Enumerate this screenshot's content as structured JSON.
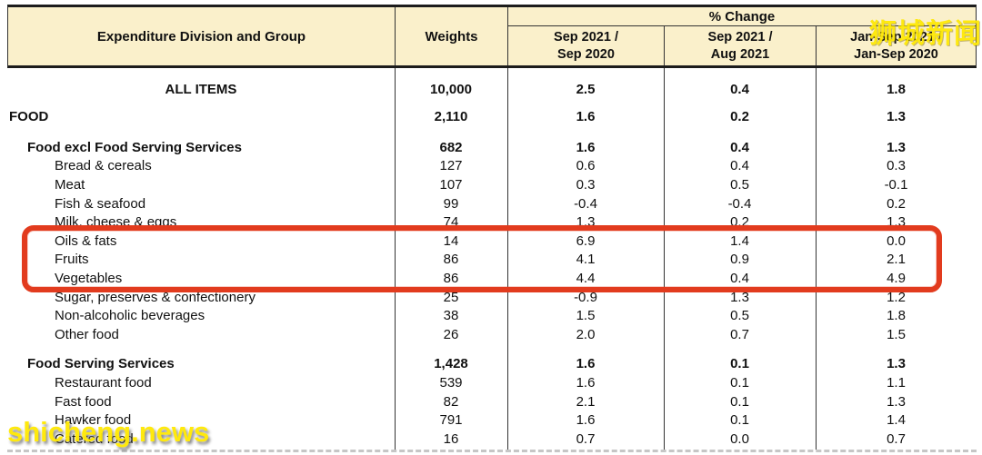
{
  "watermarks": {
    "top_right": "狮城新闻",
    "bottom_left": "shicheng.news"
  },
  "colors": {
    "header_bg": "#faf0cb",
    "table_line": "#333333",
    "highlight_red": "#e23b1e",
    "watermark_yellow": "#ffe906"
  },
  "table": {
    "header": {
      "col_division": "Expenditure Division and Group",
      "col_weights": "Weights",
      "pct_change": "% Change",
      "sub_columns": [
        "Sep 2021 /\nSep 2020",
        "Sep 2021 /\nAug 2021",
        "Jan-Sep 2021 /\nJan-Sep 2020"
      ]
    },
    "rows": [
      {
        "label": "ALL ITEMS",
        "style": "total",
        "weight": "10,000",
        "values": [
          "2.5",
          "0.4",
          "1.8"
        ]
      },
      {
        "label": "FOOD",
        "style": "division",
        "weight": "2,110",
        "values": [
          "1.6",
          "0.2",
          "1.3"
        ]
      },
      {
        "label": "Food excl Food Serving Services",
        "style": "group",
        "gap_before": 9,
        "weight": "682",
        "values": [
          "1.6",
          "0.4",
          "1.3"
        ]
      },
      {
        "label": "Bread & cereals",
        "style": "item",
        "weight": "127",
        "values": [
          "0.6",
          "0.4",
          "0.3"
        ]
      },
      {
        "label": "Meat",
        "style": "item",
        "weight": "107",
        "values": [
          "0.3",
          "0.5",
          "-0.1"
        ]
      },
      {
        "label": "Fish & seafood",
        "style": "item",
        "weight": "99",
        "values": [
          "-0.4",
          "-0.4",
          "0.2"
        ]
      },
      {
        "label": "Milk, cheese & eggs",
        "style": "item",
        "weight": "74",
        "values": [
          "1.3",
          "0.2",
          "1.3"
        ]
      },
      {
        "label": "Oils & fats",
        "style": "item",
        "highlighted": true,
        "weight": "14",
        "values": [
          "6.9",
          "1.4",
          "0.0"
        ]
      },
      {
        "label": "Fruits",
        "style": "item",
        "highlighted": true,
        "weight": "86",
        "values": [
          "4.1",
          "0.9",
          "2.1"
        ]
      },
      {
        "label": "Vegetables",
        "style": "item",
        "highlighted": true,
        "weight": "86",
        "values": [
          "4.4",
          "0.4",
          "4.9"
        ]
      },
      {
        "label": "Sugar, preserves & confectionery",
        "style": "item",
        "weight": "25",
        "values": [
          "-0.9",
          "1.3",
          "1.2"
        ]
      },
      {
        "label": "Non-alcoholic beverages",
        "style": "item",
        "weight": "38",
        "values": [
          "1.5",
          "0.5",
          "1.8"
        ]
      },
      {
        "label": "Other food",
        "style": "item",
        "weight": "26",
        "values": [
          "2.0",
          "0.7",
          "1.5"
        ]
      },
      {
        "label": "Food Serving Services",
        "style": "group",
        "gap_before": 12,
        "weight": "1,428",
        "values": [
          "1.6",
          "0.1",
          "1.3"
        ]
      },
      {
        "label": "Restaurant food",
        "style": "item",
        "weight": "539",
        "values": [
          "1.6",
          "0.1",
          "1.1"
        ]
      },
      {
        "label": "Fast food",
        "style": "item",
        "weight": "82",
        "values": [
          "2.1",
          "0.1",
          "1.3"
        ]
      },
      {
        "label": "Hawker food",
        "style": "item",
        "weight": "791",
        "values": [
          "1.6",
          "0.1",
          "1.4"
        ]
      },
      {
        "label": "Catered food",
        "style": "item",
        "weight": "16",
        "values": [
          "0.7",
          "0.0",
          "0.7"
        ]
      }
    ]
  }
}
